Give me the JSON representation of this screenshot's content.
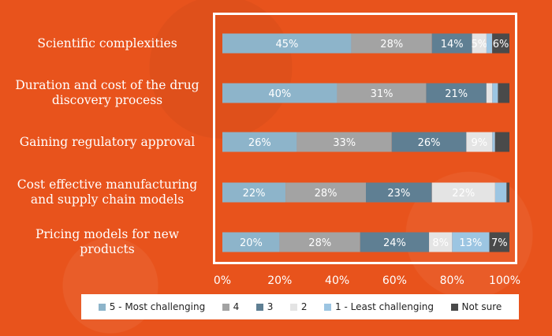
{
  "chart_data": {
    "type": "bar",
    "orientation": "horizontal",
    "stacked": true,
    "categories": [
      "Scientific complexities",
      "Duration and cost of the drug discovery process",
      "Gaining regulatory approval",
      "Cost effective manufacturing and supply chain models",
      "Pricing models for new products"
    ],
    "category_lines": [
      [
        "Scientific complexities"
      ],
      [
        "Duration and cost of the drug",
        "discovery process"
      ],
      [
        "Gaining regulatory approval"
      ],
      [
        "Cost effective manufacturing",
        "and supply chain models"
      ],
      [
        "Pricing models for new",
        "products"
      ]
    ],
    "series": [
      {
        "name": "5 - Most challenging",
        "color": "#8db4ca",
        "label_color": "#ffffff",
        "values": [
          45,
          40,
          26,
          22,
          20
        ]
      },
      {
        "name": "4",
        "color": "#a3a3a3",
        "label_color": "#ffffff",
        "values": [
          28,
          31,
          33,
          28,
          28
        ]
      },
      {
        "name": "3",
        "color": "#5f7f93",
        "label_color": "#ffffff",
        "values": [
          14,
          21,
          26,
          23,
          24
        ]
      },
      {
        "name": "2",
        "color": "#e4e4e4",
        "label_color": "#ffffff",
        "values": [
          5,
          2,
          9,
          22,
          8
        ]
      },
      {
        "name": "1 - Least challenging",
        "color": "#9cc5e2",
        "label_color": "#ffffff",
        "values": [
          2,
          2,
          1,
          4,
          13
        ]
      },
      {
        "name": "Not sure",
        "color": "#4a4a4a",
        "label_color": "#ffffff",
        "values": [
          6,
          4,
          5,
          1,
          7
        ]
      }
    ],
    "data_labels": [
      [
        "45%",
        "28%",
        "14%",
        "5%",
        "",
        "6%"
      ],
      [
        "40%",
        "31%",
        "21%",
        "",
        "",
        ""
      ],
      [
        "26%",
        "33%",
        "26%",
        "9%",
        "",
        ""
      ],
      [
        "22%",
        "28%",
        "23%",
        "22%",
        "",
        ""
      ],
      [
        "20%",
        "28%",
        "24%",
        "8%",
        "13%",
        "7%"
      ]
    ],
    "xlim": [
      0,
      100
    ],
    "xticks": [
      "0%",
      "20%",
      "40%",
      "60%",
      "80%",
      "100%"
    ],
    "legend_position": "bottom",
    "grid": false
  }
}
